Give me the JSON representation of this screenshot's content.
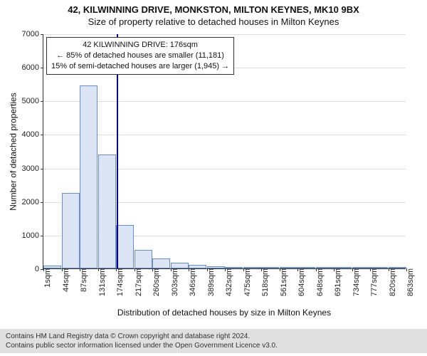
{
  "title": "42, KILWINNING DRIVE, MONKSTON, MILTON KEYNES, MK10 9BX",
  "subtitle": "Size of property relative to detached houses in Milton Keynes",
  "y_axis_label": "Number of detached properties",
  "x_axis_label": "Distribution of detached houses by size in Milton Keynes",
  "footer_line1": "Contains HM Land Registry data © Crown copyright and database right 2024.",
  "footer_line2": "Contains public sector information licensed under the Open Government Licence v3.0.",
  "chart": {
    "type": "histogram",
    "ylim": [
      0,
      7000
    ],
    "ytick_step": 1000,
    "yticks": [
      0,
      1000,
      2000,
      3000,
      4000,
      5000,
      6000,
      7000
    ],
    "xtick_labels": [
      "1sqm",
      "44sqm",
      "87sqm",
      "131sqm",
      "174sqm",
      "217sqm",
      "260sqm",
      "303sqm",
      "346sqm",
      "389sqm",
      "432sqm",
      "475sqm",
      "518sqm",
      "561sqm",
      "604sqm",
      "648sqm",
      "691sqm",
      "734sqm",
      "777sqm",
      "820sqm",
      "863sqm"
    ],
    "xtick_count": 21,
    "bars": [
      80,
      2250,
      5450,
      3400,
      1300,
      550,
      300,
      180,
      110,
      60,
      40,
      25,
      20,
      15,
      12,
      10,
      8,
      6,
      5,
      4
    ],
    "bar_color": "#dbe5f5",
    "bar_border": "#6b8bc3",
    "grid_color": "#dddddd",
    "axis_color": "#333333",
    "background_color": "#ffffff",
    "marker": {
      "position_ratio": 0.203,
      "color": "#000080",
      "label_line1": "42 KILWINNING DRIVE: 176sqm",
      "label_line2": "← 85% of detached houses are smaller (11,181)",
      "label_line3": "15% of semi-detached houses are larger (1,945) →"
    }
  }
}
